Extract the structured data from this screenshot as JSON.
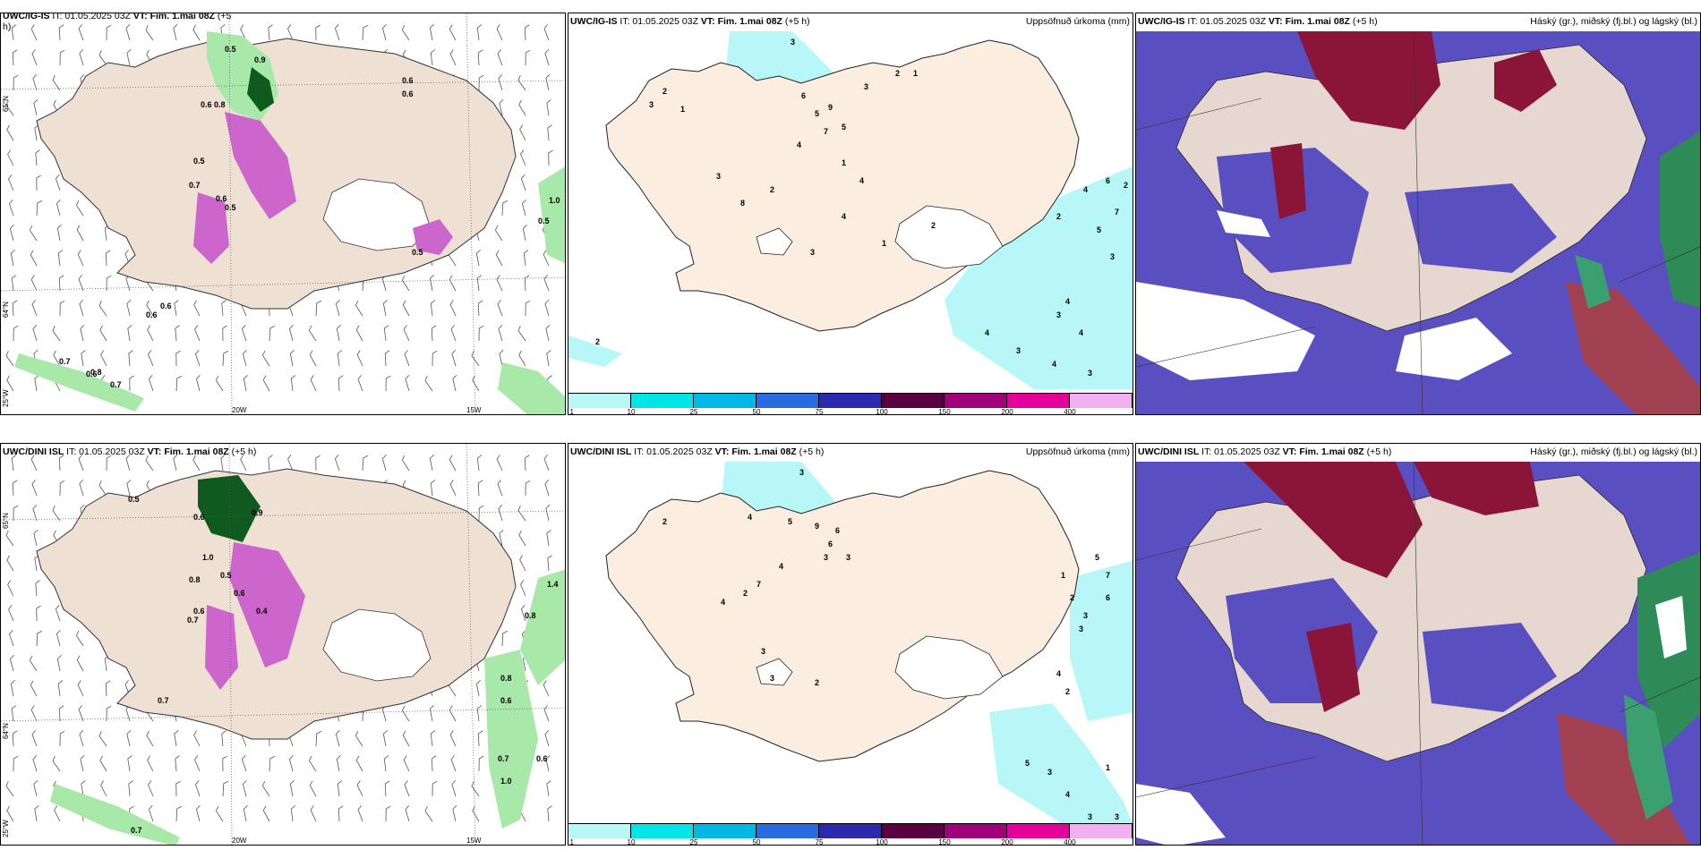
{
  "colors": {
    "land": "#f5e8dc",
    "precip_light": "#b8f7f7",
    "cloud_high": "#8b1538",
    "cloud_mid": "#5a4fc0",
    "cloud_low": "#2e8b57",
    "green_light": "#b9f0b9",
    "green_dark": "#0f5a1e",
    "magenta": "#cc66cc"
  },
  "panels": {
    "p1": {
      "title_model": "UWC/IG-IS",
      "title_it": "IT: 01.05.2025 03Z",
      "title_vt": "VT: Fim. 1.mai 08Z",
      "title_lead": "(+5",
      "title_lead2": "h)",
      "axis_lat_top": "65°N",
      "axis_lat_bot": "64°N",
      "axis_lat_edge": "25°W",
      "axis_lon1": "20W",
      "axis_lon2": "15W",
      "labels": [
        "0.5",
        "0.9",
        "0.6",
        "0.6",
        "0.8",
        "0.7",
        "0.6",
        "0.5",
        "0.6",
        "0.7",
        "0.6",
        "0.8",
        "0.7",
        "0.6",
        "1.0",
        "0.5",
        "0.5",
        "0.6",
        "0.5"
      ]
    },
    "p2": {
      "title_model": "UWC/IG-IS",
      "title_it": "IT: 01.05.2025 03Z",
      "title_vt": "VT: Fim. 1.mai 08Z",
      "title_lead": "(+5 h)",
      "right_title": "Uppsöfnuð úrkoma (mm)",
      "labels": [
        "3",
        "2",
        "3",
        "1",
        "6",
        "5",
        "9",
        "7",
        "5",
        "4",
        "3",
        "2",
        "1",
        "3",
        "8",
        "2",
        "1",
        "4",
        "3",
        "1",
        "2",
        "4",
        "2",
        "6",
        "7",
        "5",
        "4",
        "3",
        "4",
        "4",
        "3",
        "4",
        "3",
        "2",
        "2",
        "4",
        "3"
      ]
    },
    "p3": {
      "title_model": "UWC/IG-IS",
      "title_it": "IT: 01.05.2025 03Z",
      "title_vt": "VT: Fim. 1.mai 08Z",
      "title_lead": "(+5 h)",
      "right_title": "Háský (gr.), miðský (fj.bl.) og lágský (bl.)"
    },
    "p4": {
      "title_model": "UWC/DINI ISL",
      "title_it": "IT: 01.05.2025 03Z",
      "title_vt": "VT: Fim. 1.mai 08Z",
      "title_lead": "(+5 h)",
      "axis_lat_top": "65°N",
      "axis_lat_bot": "64°N",
      "axis_lat_edge": "25°W",
      "axis_lon1": "20W",
      "axis_lon2": "15W",
      "labels": [
        "0.5",
        "0.6",
        "0.9",
        "1.0",
        "0.8",
        "0.6",
        "0.5",
        "0.6",
        "0.4",
        "0.7",
        "0.7",
        "0.8",
        "0.6",
        "0.7",
        "1.0",
        "0.6",
        "0.8",
        "1.4",
        "0.7"
      ]
    },
    "p5": {
      "title_model": "UWC/DINI ISL",
      "title_it": "IT: 01.05.2025 03Z",
      "title_vt": "VT: Fim. 1.mai 08Z",
      "title_lead": "(+5 h)",
      "right_title": "Uppsöfnuð úrkoma (mm)",
      "labels": [
        "3",
        "2",
        "4",
        "5",
        "9",
        "6",
        "6",
        "3",
        "3",
        "4",
        "7",
        "2",
        "4",
        "3",
        "3",
        "1",
        "2",
        "3",
        "5",
        "7",
        "6",
        "3",
        "4",
        "2",
        "5",
        "3",
        "1",
        "4",
        "3",
        "3",
        "2"
      ]
    },
    "p6": {
      "title_model": "UWC/DINI ISL",
      "title_it": "IT: 01.05.2025 03Z",
      "title_vt": "VT: Fim. 1.mai 08Z",
      "title_lead": "(+5 h)",
      "right_title": "Háský (gr.), miðský (fj.bl.) og lágský (bl.)"
    }
  },
  "colorbar": {
    "ticks": [
      "1",
      "10",
      "25",
      "50",
      "75",
      "100",
      "150",
      "200",
      "400"
    ],
    "colors": [
      "#b8f7f7",
      "#00e5e5",
      "#00b8e6",
      "#2b6be0",
      "#2a2ab0",
      "#5a0040",
      "#a0007a",
      "#e6009a",
      "#f0b0f0"
    ]
  }
}
